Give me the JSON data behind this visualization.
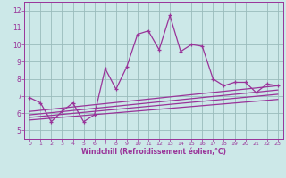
{
  "xlabel": "Windchill (Refroidissement éolien,°C)",
  "bg_color": "#cce8e8",
  "line_color": "#993399",
  "grid_color": "#99bbbb",
  "xlim": [
    -0.5,
    23.5
  ],
  "ylim": [
    4.5,
    12.5
  ],
  "yticks": [
    5,
    6,
    7,
    8,
    9,
    10,
    11,
    12
  ],
  "xticks": [
    0,
    1,
    2,
    3,
    4,
    5,
    6,
    7,
    8,
    9,
    10,
    11,
    12,
    13,
    14,
    15,
    16,
    17,
    18,
    19,
    20,
    21,
    22,
    23
  ],
  "main_line_x": [
    0,
    1,
    2,
    3,
    4,
    5,
    6,
    7,
    8,
    9,
    10,
    11,
    12,
    13,
    14,
    15,
    16,
    17,
    18,
    19,
    20,
    21,
    22,
    23
  ],
  "main_line_y": [
    6.9,
    6.6,
    5.5,
    6.1,
    6.6,
    5.5,
    5.9,
    8.6,
    7.4,
    8.7,
    10.6,
    10.8,
    9.7,
    11.7,
    9.6,
    10.0,
    9.9,
    8.0,
    7.6,
    7.8,
    7.8,
    7.2,
    7.7,
    7.6
  ],
  "regression_lines": [
    {
      "x": [
        0,
        23
      ],
      "y": [
        5.6,
        6.8
      ]
    },
    {
      "x": [
        0,
        23
      ],
      "y": [
        5.75,
        7.1
      ]
    },
    {
      "x": [
        0,
        23
      ],
      "y": [
        5.9,
        7.35
      ]
    },
    {
      "x": [
        0,
        23
      ],
      "y": [
        6.1,
        7.6
      ]
    }
  ]
}
